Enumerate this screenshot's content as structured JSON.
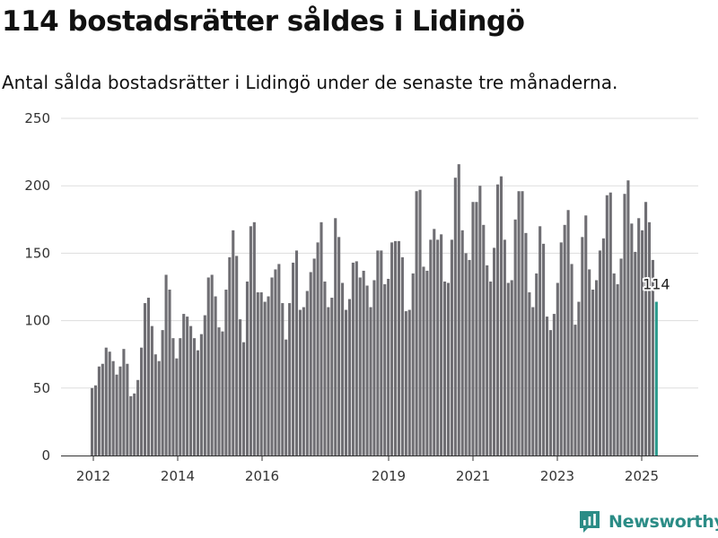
{
  "title": "114 bostadsrätter såldes i Lidingö",
  "subtitle": "Antal sålda bostadsrätter i Lidingö under de senaste tre månaderna.",
  "brand": {
    "name": "Newsworthy",
    "color": "#2b8c86",
    "icon": "newsworthy-logo-icon"
  },
  "chart_data": {
    "type": "bar",
    "title": "",
    "xlabel": "",
    "ylabel": "",
    "ylim": [
      0,
      250
    ],
    "yticks": [
      "0",
      "50",
      "100",
      "150",
      "200",
      "250"
    ],
    "xticks": [
      "2012",
      "2014",
      "2016",
      "2019",
      "2021",
      "2023",
      "2025"
    ],
    "grid": true,
    "bar_color": "#6f6e73",
    "highlight_color": "#2a9a8c",
    "highlight_label": "114",
    "series": [
      {
        "values": [
          50,
          52,
          66,
          68,
          80,
          77,
          70,
          60,
          66,
          79,
          68,
          44,
          46,
          56,
          80,
          113,
          117,
          96,
          75,
          70,
          93,
          134,
          123,
          87,
          72,
          87,
          105,
          103,
          96,
          87,
          78,
          90,
          104,
          132,
          134,
          118,
          95,
          92,
          123,
          147,
          167,
          148,
          101,
          84,
          129,
          170,
          173,
          121,
          121,
          114,
          118,
          132,
          138,
          142,
          113,
          86,
          113,
          143,
          152,
          108,
          110,
          122,
          136,
          146,
          158,
          173,
          129,
          110,
          117,
          176,
          162,
          128,
          108,
          116,
          143,
          144,
          132,
          137,
          126,
          110,
          130,
          152,
          152,
          127,
          131,
          158,
          159,
          159,
          147,
          107,
          108,
          135,
          196,
          197,
          140,
          137,
          160,
          168,
          160,
          164,
          129,
          128,
          160,
          206,
          216,
          167,
          150,
          145,
          188,
          188,
          200,
          171,
          141,
          129,
          154,
          201,
          207,
          160,
          128,
          130,
          175,
          196,
          196,
          165,
          121,
          110,
          135,
          170,
          157,
          103,
          93,
          105,
          128,
          158,
          171,
          182,
          142,
          97,
          114,
          162,
          178,
          138,
          123,
          130,
          152,
          161,
          193,
          195,
          135,
          127,
          146,
          194,
          204,
          172,
          151,
          176,
          167,
          188,
          173,
          145,
          114
        ]
      }
    ]
  }
}
